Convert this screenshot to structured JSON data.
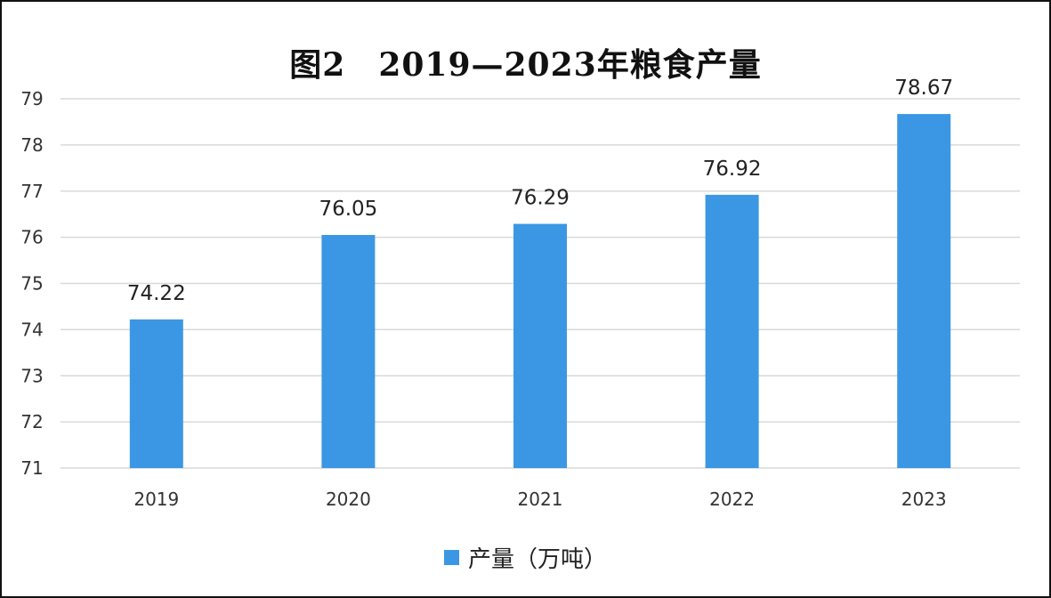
{
  "chart_data": {
    "type": "bar",
    "title": "图2　2019—2023年粮食产量",
    "categories": [
      "2019",
      "2020",
      "2021",
      "2022",
      "2023"
    ],
    "series": [
      {
        "name": "产量（万吨）",
        "values": [
          74.22,
          76.05,
          76.29,
          76.92,
          78.67
        ]
      }
    ],
    "ylim": [
      71,
      79
    ],
    "yticks": [
      "71",
      "72",
      "73",
      "74",
      "75",
      "76",
      "77",
      "78",
      "79"
    ],
    "data_labels": [
      "74.22",
      "76.05",
      "76.29",
      "76.92",
      "78.67"
    ],
    "grid": true,
    "legend": "bottom",
    "bar_color": "#3b97e3",
    "grid_color": "#d9d9d9"
  }
}
